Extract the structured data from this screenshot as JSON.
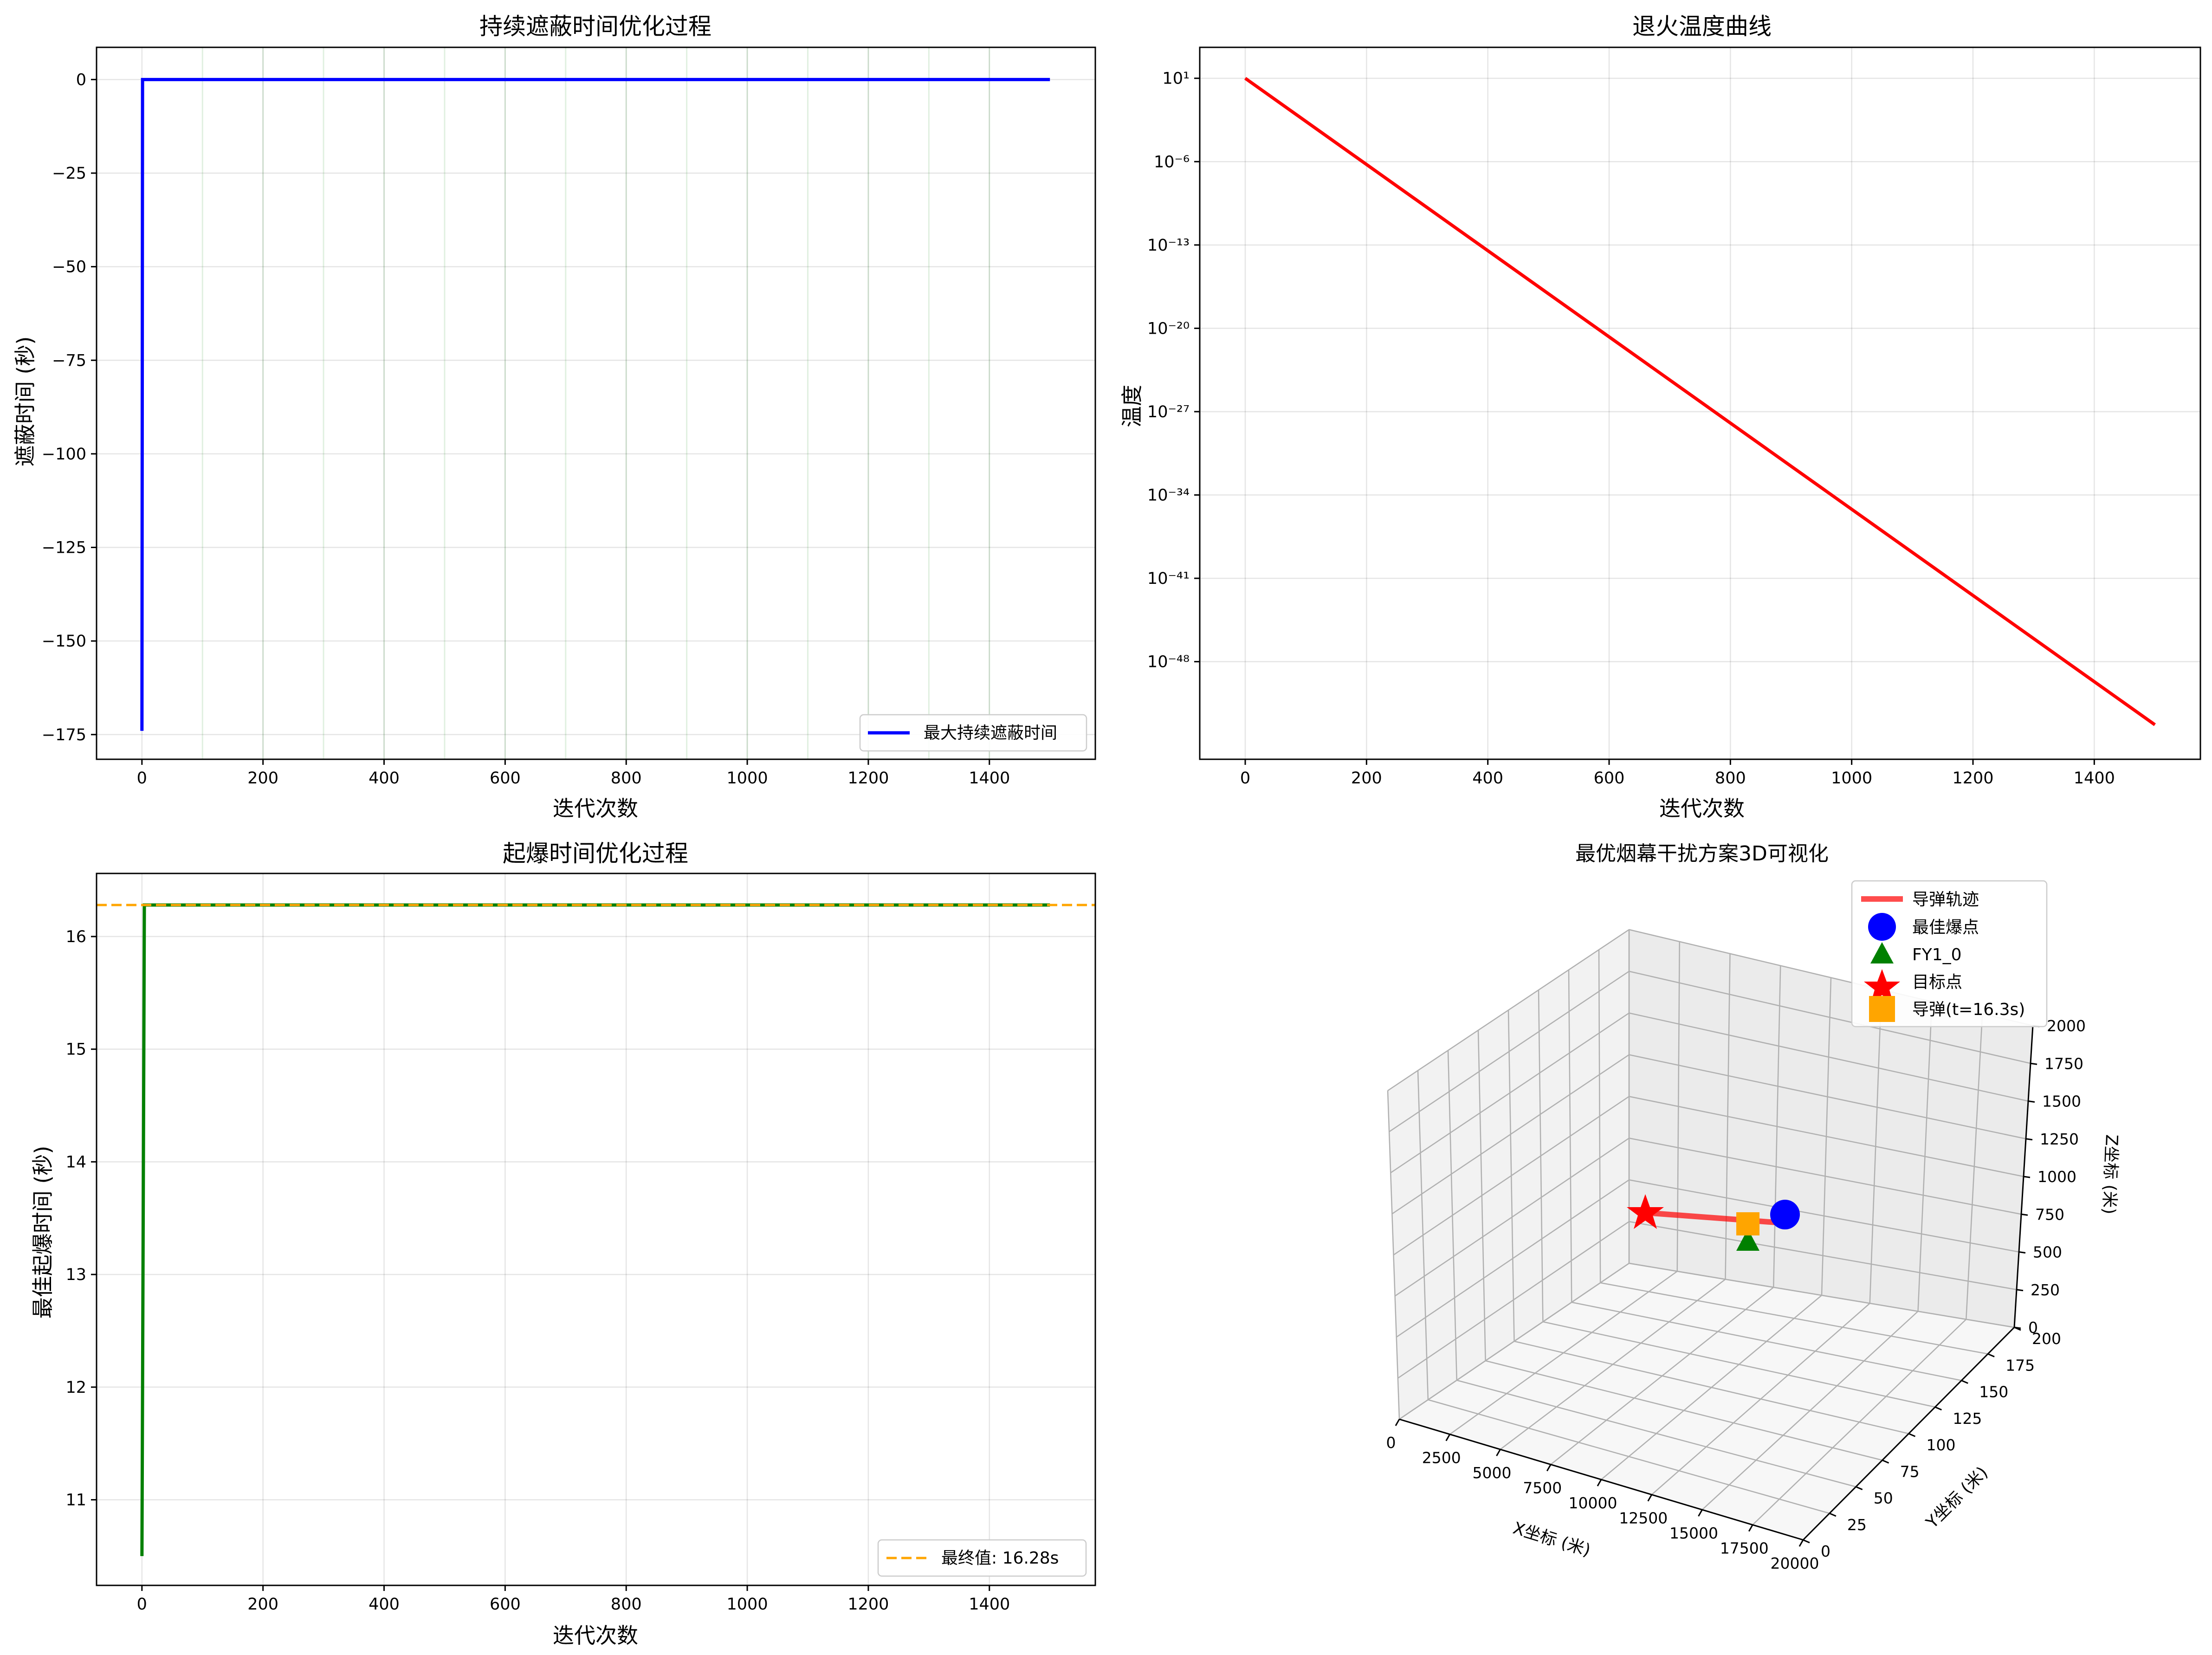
{
  "chart_data": [
    {
      "type": "line",
      "title": "持续遮蔽时间优化过程",
      "xlabel": "迭代次数",
      "ylabel": "遮蔽时间 (秒)",
      "xlim": [
        -75,
        1575
      ],
      "ylim": [
        -181.6,
        8.6
      ],
      "xticks": [
        0,
        200,
        400,
        600,
        800,
        1000,
        1200,
        1400
      ],
      "yticks": [
        0,
        -25,
        -50,
        -75,
        -100,
        -125,
        -150,
        -175
      ],
      "ytick_labels": [
        "0",
        "−25",
        "−50",
        "−75",
        "−100",
        "−125",
        "−150",
        "−175"
      ],
      "grid": true,
      "vlines": [
        100,
        200,
        300,
        400,
        500,
        600,
        700,
        800,
        900,
        1000,
        1100,
        1200,
        1300,
        1400
      ],
      "legend_position": "lower-right",
      "series": [
        {
          "name": "最大持续遮蔽时间",
          "color": "#0000ff",
          "x": [
            0,
            1,
            1500
          ],
          "y": [
            -174,
            0,
            0
          ]
        }
      ]
    },
    {
      "type": "line",
      "title": "退火温度曲线",
      "xlabel": "迭代次数",
      "ylabel": "温度",
      "xlim": [
        -75,
        1575
      ],
      "y_scale": "log",
      "ylim_exp": [
        -56.2,
        3.6
      ],
      "xticks": [
        0,
        200,
        400,
        600,
        800,
        1000,
        1200,
        1400
      ],
      "yticks_exp": [
        1,
        -6,
        -13,
        -20,
        -27,
        -34,
        -41,
        -48
      ],
      "ytick_labels": [
        "10¹",
        "10⁻⁶",
        "10⁻¹³",
        "10⁻²⁰",
        "10⁻²⁷",
        "10⁻³⁴",
        "10⁻⁴¹",
        "10⁻⁴⁸"
      ],
      "grid": true,
      "series": [
        {
          "color": "#ff0000",
          "x": [
            0,
            1500
          ],
          "y_exp": [
            1,
            -53.3
          ]
        }
      ]
    },
    {
      "type": "line",
      "title": "起爆时间优化过程",
      "xlabel": "迭代次数",
      "ylabel": "最佳起爆时间 (秒)",
      "xlim": [
        -75,
        1575
      ],
      "ylim": [
        10.24,
        16.56
      ],
      "xticks": [
        0,
        200,
        400,
        600,
        800,
        1000,
        1200,
        1400
      ],
      "yticks": [
        11,
        12,
        13,
        14,
        15,
        16
      ],
      "grid": true,
      "legend_position": "lower-right",
      "series": [
        {
          "color": "#008000",
          "x": [
            0,
            4,
            1500
          ],
          "y": [
            10.5,
            16.28,
            16.28
          ]
        }
      ],
      "hline": {
        "name": "最终值: 16.28s",
        "y": 16.28,
        "color": "#ffa500",
        "style": "dashed"
      }
    },
    {
      "type": "scatter",
      "projection": "3d",
      "title": "最优烟幕干扰方案3D可视化",
      "xlabel": "X坐标 (米)",
      "ylabel": "Y坐标 (米)",
      "zlabel": "Z坐标 (米)",
      "xticks": [
        0,
        2500,
        5000,
        7500,
        10000,
        12500,
        15000,
        17500,
        20000
      ],
      "yticks": [
        0,
        25,
        50,
        75,
        100,
        125,
        150,
        175,
        200
      ],
      "zticks": [
        0,
        250,
        500,
        750,
        1000,
        1250,
        1500,
        1750,
        2000
      ],
      "legend_position": "upper-right",
      "legend": [
        {
          "name": "导弹轨迹",
          "marker": "line",
          "color": "#ff0000"
        },
        {
          "name": "最佳爆点",
          "marker": "circle",
          "color": "#0000ff"
        },
        {
          "name": "FY1_0",
          "marker": "triangle",
          "color": "#008000"
        },
        {
          "name": "目标点",
          "marker": "star",
          "color": "#ff0000"
        },
        {
          "name": "导弹(t=16.3s)",
          "marker": "square",
          "color": "#ffa500"
        }
      ]
    }
  ]
}
